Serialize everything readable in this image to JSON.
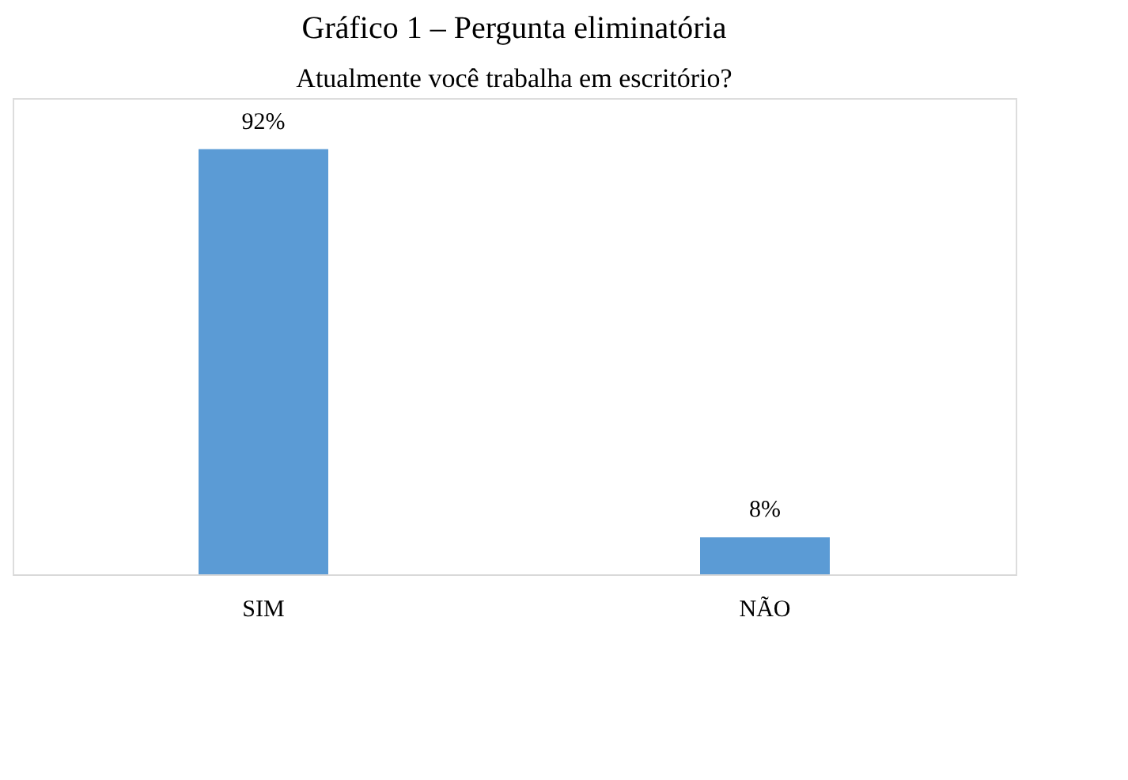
{
  "chart_data": {
    "type": "bar",
    "title": "Gráfico 1 – Pergunta eliminatória",
    "subtitle": "Atualmente você trabalha em escritório?",
    "categories": [
      "SIM",
      "NÃO"
    ],
    "values": [
      92,
      8
    ],
    "color": "#5b9bd5",
    "value_labels": [
      "92%",
      "8%"
    ],
    "grid": false
  }
}
